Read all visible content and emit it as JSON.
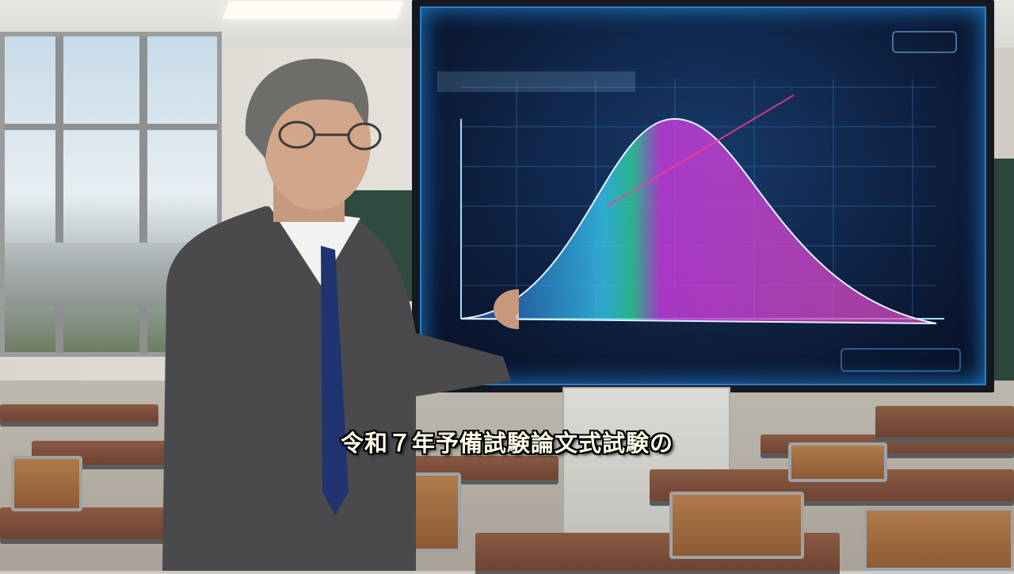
{
  "subtitle": "令和７年予備試験論文式試験の",
  "colors": {
    "screen_glow": "#2a80c0",
    "curve_cyan": "#38c8f0",
    "curve_green": "#2fd39a",
    "curve_magenta": "#d040d8",
    "laser": "#ff3c8c",
    "subtitle_text": "#fffbe6"
  },
  "scene": {
    "icons": [
      "presenter-person",
      "pointer-stick",
      "projection-screen",
      "bell-curve-chart",
      "classroom-desks",
      "windows"
    ]
  }
}
